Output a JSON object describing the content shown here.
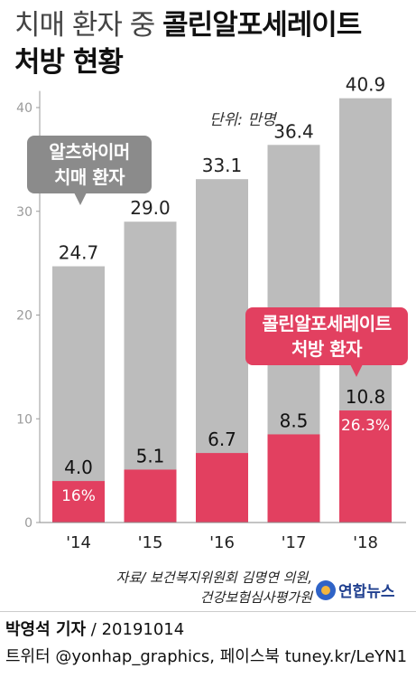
{
  "title": {
    "line1_light": "치매 환자 중",
    "line1_bold": "콜린알포세레이트",
    "line2_bold": "처방 현황"
  },
  "unit_label": "단위: 만명",
  "callouts": {
    "total": [
      "알츠하이머",
      "치매 환자"
    ],
    "prescribed": [
      "콜린알포세레이트",
      "처방 환자"
    ]
  },
  "source": [
    "자료/ 보건복지위원회 김명연 의원,",
    "건강보험심사평가원"
  ],
  "logo_text": "연합뉴스",
  "credit": {
    "line1_name": "박영석 기자",
    "line1_rest": " / 20191014",
    "line2": "트위터 @yonhap_graphics, 페이스북 tuney.kr/LeYN1"
  },
  "chart_data": {
    "type": "bar",
    "categories": [
      "'14",
      "'15",
      "'16",
      "'17",
      "'18"
    ],
    "series": [
      {
        "values": [
          24.7,
          29.0,
          33.1,
          36.4,
          40.9
        ],
        "labels": [
          "24.7",
          "29.0",
          "33.1",
          "36.4",
          "40.9"
        ],
        "color": "#bcbcbc"
      },
      {
        "values": [
          4.0,
          5.1,
          6.7,
          8.5,
          10.8
        ],
        "labels": [
          "4.0",
          "5.1",
          "6.7",
          "8.5",
          "10.8"
        ],
        "color": "#e24060"
      }
    ],
    "share_labels": [
      "16%",
      "",
      "",
      "",
      "26.3%"
    ],
    "yticks": [
      "0",
      "10",
      "20",
      "30",
      "40"
    ],
    "ylim": [
      0,
      40.9
    ],
    "grid": false
  }
}
